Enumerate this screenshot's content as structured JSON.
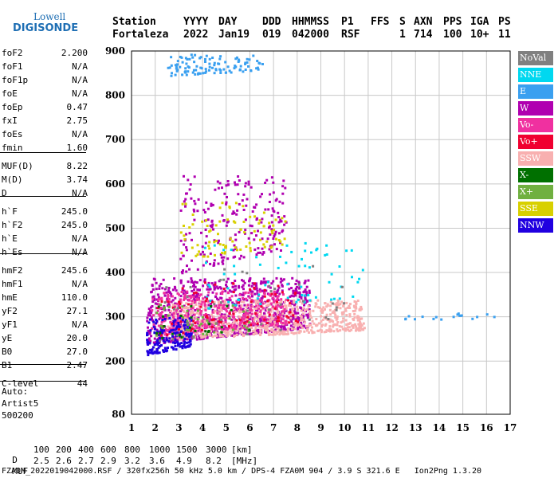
{
  "logo": {
    "line1": "Lowell",
    "line2": "DIGISONDE"
  },
  "header": {
    "row1": [
      "Station",
      "YYYY",
      "DAY",
      "DDD",
      "HHMMSS",
      "P1",
      "FFS",
      "S",
      "AXN",
      "PPS",
      "IGA",
      "PS"
    ],
    "row2": [
      "Fortaleza",
      "2022",
      "Jan19",
      "019",
      "042000",
      "RSF",
      "1",
      "714",
      "100",
      "10+",
      "11"
    ]
  },
  "parameters": [
    {
      "name": "foF2",
      "value": "2.200"
    },
    {
      "name": "foF1",
      "value": "N/A"
    },
    {
      "name": "foF1p",
      "value": "N/A"
    },
    {
      "name": "foE",
      "value": "N/A"
    },
    {
      "name": "foEp",
      "value": "0.47"
    },
    {
      "name": "fxI",
      "value": "2.75"
    },
    {
      "name": "foEs",
      "value": "N/A"
    },
    {
      "name": "fmin",
      "value": "1.60"
    },
    {
      "name": "MUF(D)",
      "value": "8.22"
    },
    {
      "name": "M(D)",
      "value": "3.74"
    },
    {
      "name": "D",
      "value": "N/A"
    },
    {
      "name": "h`F",
      "value": "245.0"
    },
    {
      "name": "h`F2",
      "value": "245.0"
    },
    {
      "name": "h`E",
      "value": "N/A"
    },
    {
      "name": "h`Es",
      "value": "N/A"
    },
    {
      "name": "hmF2",
      "value": "245.6"
    },
    {
      "name": "hmF1",
      "value": "N/A"
    },
    {
      "name": "hmE",
      "value": "110.0"
    },
    {
      "name": "yF2",
      "value": "27.1"
    },
    {
      "name": "yF1",
      "value": "N/A"
    },
    {
      "name": "yE",
      "value": "20.0"
    },
    {
      "name": "B0",
      "value": "27.0"
    },
    {
      "name": "B1",
      "value": "2.47"
    },
    {
      "name": "C-level",
      "value": "44"
    }
  ],
  "auto": {
    "line1": "Auto:",
    "line2": "Artist5",
    "line3": "500200"
  },
  "legend": [
    {
      "label": "NoVal",
      "color": "#808080"
    },
    {
      "label": "NNE",
      "color": "#00d8f0"
    },
    {
      "label": "E",
      "color": "#3aa0f0"
    },
    {
      "label": "W",
      "color": "#b000b0"
    },
    {
      "label": "Vo-",
      "color": "#f030a0"
    },
    {
      "label": "Vo+",
      "color": "#f00030"
    },
    {
      "label": "SSW",
      "color": "#f8b0b0"
    },
    {
      "label": "X-",
      "color": "#007000"
    },
    {
      "label": "X+",
      "color": "#70b040"
    },
    {
      "label": "SSE",
      "color": "#d8d000"
    },
    {
      "label": "NNW",
      "color": "#2000e0"
    }
  ],
  "footer": {
    "d_label": "D",
    "d_values": [
      "100",
      "200",
      "400",
      "600",
      "800",
      "1000",
      "1500",
      "3000",
      "[km]"
    ],
    "muf_label": "MUF",
    "muf_values": [
      "2.5",
      "2.6",
      "2.7",
      "2.9",
      "3.2",
      "3.6",
      "4.9",
      "8.2",
      "[MHz]"
    ],
    "info": "FZA0M_2022019042000.RSF / 320fx256h 50 kHz 5.0 km / DPS-4 FZA0M 904 / 3.9 S 321.6 E   Ion2Png 1.3.20"
  },
  "chart_data": {
    "type": "scatter",
    "xlim": [
      1,
      17
    ],
    "ylim": [
      80,
      900
    ],
    "x_ticks": [
      1,
      2,
      3,
      4,
      5,
      6,
      7,
      8,
      9,
      10,
      11,
      12,
      13,
      14,
      15,
      16,
      17
    ],
    "y_ticks": [
      80,
      200,
      300,
      400,
      500,
      600,
      700,
      800,
      900
    ],
    "grid": true,
    "legend_position": "right",
    "clusters": [
      {
        "color": "W",
        "x": [
          1.6,
          8.5
        ],
        "y": [
          240,
          390
        ],
        "n": 900
      },
      {
        "color": "SSW",
        "x": [
          2.5,
          10.8
        ],
        "y": [
          250,
          340
        ],
        "n": 700
      },
      {
        "color": "Vo-",
        "x": [
          1.8,
          7.5
        ],
        "y": [
          260,
          360
        ],
        "n": 350
      },
      {
        "color": "NNW",
        "x": [
          1.6,
          3.5
        ],
        "y": [
          215,
          300
        ],
        "n": 180
      },
      {
        "color": "E",
        "x": [
          2.5,
          6.5
        ],
        "y": [
          846,
          895
        ],
        "n": 110
      },
      {
        "color": "W",
        "x": [
          3,
          7.5
        ],
        "y": [
          400,
          620
        ],
        "n": 220
      },
      {
        "color": "SSE",
        "x": [
          3,
          7.5
        ],
        "y": [
          430,
          560
        ],
        "n": 90
      },
      {
        "color": "NNE",
        "x": [
          4,
          11
        ],
        "y": [
          310,
          470
        ],
        "n": 70
      },
      {
        "color": "Vo+",
        "x": [
          2,
          8
        ],
        "y": [
          260,
          380
        ],
        "n": 90
      },
      {
        "color": "X+",
        "x": [
          2,
          6
        ],
        "y": [
          250,
          330
        ],
        "n": 40
      },
      {
        "color": "X-",
        "x": [
          2,
          6
        ],
        "y": [
          250,
          330
        ],
        "n": 25
      },
      {
        "color": "NoVal",
        "x": [
          2,
          10
        ],
        "y": [
          240,
          420
        ],
        "n": 40
      },
      {
        "color": "E",
        "x": [
          12.5,
          16.5
        ],
        "y": [
          295,
          310
        ],
        "n": 18
      }
    ]
  }
}
